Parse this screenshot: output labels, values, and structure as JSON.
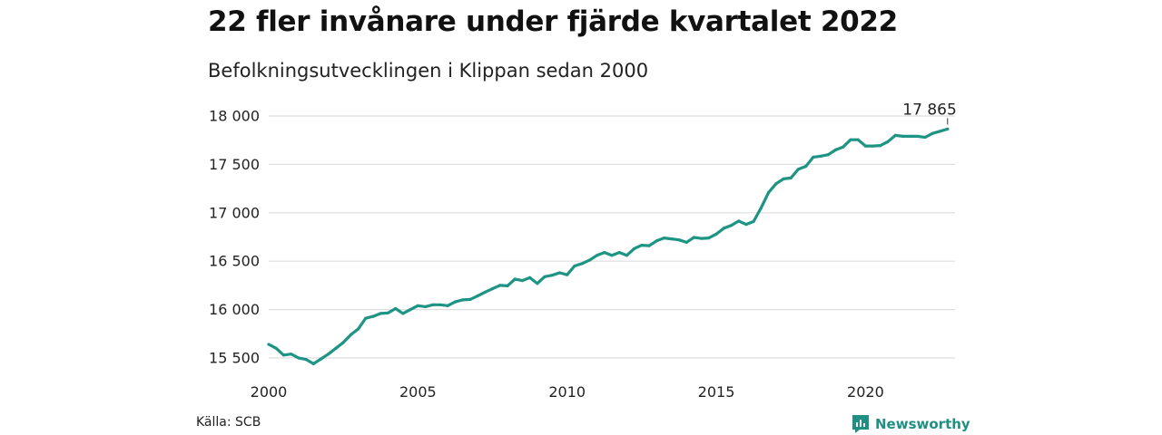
{
  "title": "22 fler invånare under fjärde kvartalet 2022",
  "subtitle": "Befolkningsutvecklingen i Klippan sedan 2000",
  "source": "Källa: SCB",
  "brand": "Newsworthy",
  "colors": {
    "line": "#1e9484",
    "grid": "#dddddd",
    "brand": "#1f8f82"
  },
  "chart_data": {
    "type": "line",
    "title": "22 fler invånare under fjärde kvartalet 2022",
    "subtitle": "Befolkningsutvecklingen i Klippan sedan 2000",
    "xlabel": "",
    "ylabel": "",
    "xlim": [
      2000,
      2023
    ],
    "ylim": [
      15400,
      18000
    ],
    "grid": true,
    "x_ticks": [
      {
        "value": 2000,
        "label": "2000"
      },
      {
        "value": 2005,
        "label": "2005"
      },
      {
        "value": 2010,
        "label": "2010"
      },
      {
        "value": 2015,
        "label": "2015"
      },
      {
        "value": 2020,
        "label": "2020"
      }
    ],
    "y_ticks": [
      {
        "value": 15500,
        "label": "15 500"
      },
      {
        "value": 16000,
        "label": "16 000"
      },
      {
        "value": 16500,
        "label": "16 500"
      },
      {
        "value": 17000,
        "label": "17 000"
      },
      {
        "value": 17500,
        "label": "17 500"
      },
      {
        "value": 18000,
        "label": "18 000"
      }
    ],
    "end_label": "17 865",
    "series": [
      {
        "x": [
          "2000-Q1",
          "2000-Q2",
          "2000-Q3",
          "2000-Q4",
          "2001-Q1",
          "2001-Q2",
          "2001-Q3",
          "2001-Q4",
          "2002-Q1",
          "2002-Q2",
          "2002-Q3",
          "2002-Q4",
          "2003-Q1",
          "2003-Q2",
          "2003-Q3",
          "2003-Q4",
          "2004-Q1",
          "2004-Q2",
          "2004-Q3",
          "2004-Q4",
          "2005-Q1",
          "2005-Q2",
          "2005-Q3",
          "2005-Q4",
          "2006-Q1",
          "2006-Q2",
          "2006-Q3",
          "2006-Q4",
          "2007-Q1",
          "2007-Q2",
          "2007-Q3",
          "2007-Q4",
          "2008-Q1",
          "2008-Q2",
          "2008-Q3",
          "2008-Q4",
          "2009-Q1",
          "2009-Q2",
          "2009-Q3",
          "2009-Q4",
          "2010-Q1",
          "2010-Q2",
          "2010-Q3",
          "2010-Q4",
          "2011-Q1",
          "2011-Q2",
          "2011-Q3",
          "2011-Q4",
          "2012-Q1",
          "2012-Q2",
          "2012-Q3",
          "2012-Q4",
          "2013-Q1",
          "2013-Q2",
          "2013-Q3",
          "2013-Q4",
          "2014-Q1",
          "2014-Q2",
          "2014-Q3",
          "2014-Q4",
          "2015-Q1",
          "2015-Q2",
          "2015-Q3",
          "2015-Q4",
          "2016-Q1",
          "2016-Q2",
          "2016-Q3",
          "2016-Q4",
          "2017-Q1",
          "2017-Q2",
          "2017-Q3",
          "2017-Q4",
          "2018-Q1",
          "2018-Q2",
          "2018-Q3",
          "2018-Q4",
          "2019-Q1",
          "2019-Q2",
          "2019-Q3",
          "2019-Q4",
          "2020-Q1",
          "2020-Q2",
          "2020-Q3",
          "2020-Q4",
          "2021-Q1",
          "2021-Q2",
          "2021-Q3",
          "2021-Q4",
          "2022-Q1",
          "2022-Q2",
          "2022-Q3",
          "2022-Q4"
        ],
        "values": [
          15640,
          15600,
          15530,
          15540,
          15500,
          15485,
          15440,
          15490,
          15540,
          15600,
          15660,
          15740,
          15800,
          15910,
          15930,
          15960,
          15965,
          16010,
          15960,
          16000,
          16040,
          16030,
          16050,
          16050,
          16040,
          16080,
          16100,
          16105,
          16140,
          16180,
          16215,
          16250,
          16245,
          16315,
          16300,
          16330,
          16270,
          16340,
          16355,
          16380,
          16360,
          16450,
          16475,
          16510,
          16560,
          16590,
          16560,
          16590,
          16560,
          16630,
          16665,
          16660,
          16710,
          16740,
          16730,
          16720,
          16695,
          16745,
          16735,
          16740,
          16780,
          16840,
          16870,
          16915,
          16880,
          16910,
          17050,
          17210,
          17300,
          17350,
          17360,
          17450,
          17480,
          17575,
          17585,
          17600,
          17650,
          17680,
          17755,
          17755,
          17690,
          17690,
          17695,
          17735,
          17800,
          17790,
          17790,
          17790,
          17780,
          17820,
          17843,
          17865
        ]
      }
    ]
  }
}
